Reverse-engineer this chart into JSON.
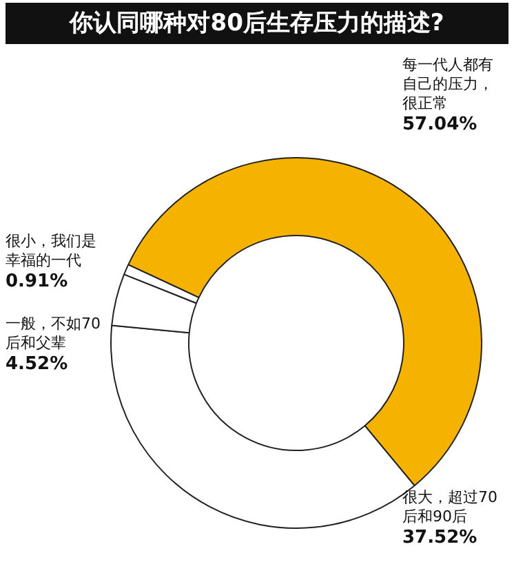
{
  "chart_data": {
    "type": "donut",
    "title": "你认同哪种对80后生存压力的描述?",
    "categories": [
      "每一代人都有自己的压力，很正常",
      "很大，超过70后和90后",
      "一般，不如70后和父辈",
      "很小，我们是幸福的一代"
    ],
    "values": [
      57.04,
      37.52,
      4.52,
      0.91
    ],
    "colors": [
      "#f5b300",
      "#ffffff",
      "#ffffff",
      "#ffffff"
    ],
    "value_labels": [
      "57.04%",
      "37.52%",
      "4.52%",
      "0.91%"
    ],
    "legend": false
  }
}
